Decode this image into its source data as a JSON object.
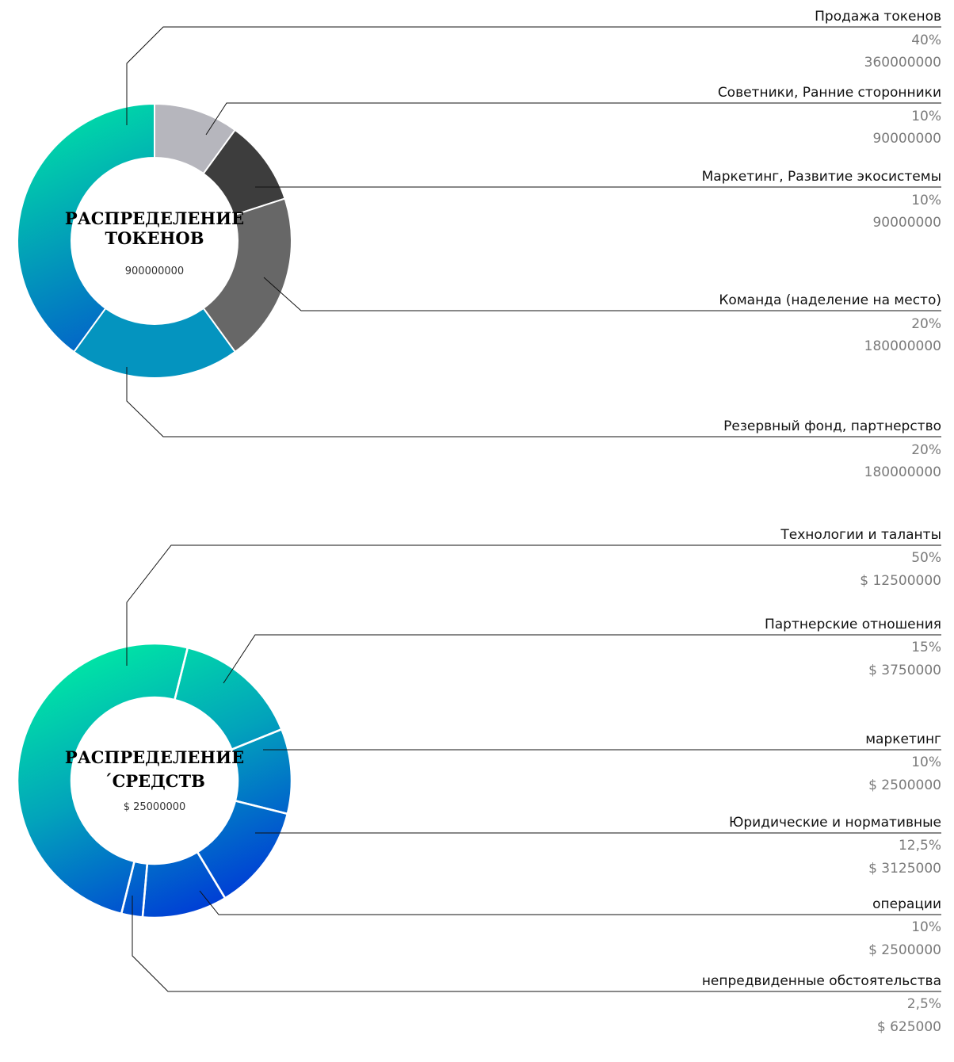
{
  "chart_data": [
    {
      "type": "pie",
      "title": "РАСПРЕДЕЛЕНИЕ ТОКЕНОВ",
      "title_lines": [
        "РАСПРЕДЕЛЕНИЕ",
        "ТОКЕНОВ"
      ],
      "total": "900000000",
      "slices": [
        {
          "name": "Продажа токенов",
          "percent_label": "40%",
          "amount": "360000000",
          "value": 40,
          "color": "gradient"
        },
        {
          "name": "Советники, Ранние сторонники",
          "percent_label": "10%",
          "amount": "90000000",
          "value": 10,
          "color": "#b6b6bd"
        },
        {
          "name": "Маркетинг, Развитие экосистемы",
          "percent_label": "10%",
          "amount": "90000000",
          "value": 10,
          "color": "#3d3d3d"
        },
        {
          "name": "Команда (наделение на место)",
          "percent_label": "20%",
          "amount": "180000000",
          "value": 20,
          "color": "#676767"
        },
        {
          "name": "Резервный фонд, партнерство",
          "percent_label": "20%",
          "amount": "180000000",
          "value": 20,
          "color": "#0494bf"
        }
      ],
      "order_from_top_clockwise": [
        1,
        2,
        3,
        4,
        0
      ]
    },
    {
      "type": "pie",
      "title": "РАСПРЕДЕЛЕНИЕ ´СРЕДСТВ",
      "title_lines": [
        "РАСПРЕДЕЛЕНИЕ",
        "´СРЕДСТВ"
      ],
      "total": "$ 25000000",
      "slices": [
        {
          "name": "Технологии и таланты",
          "percent_label": "50%",
          "amount": "$ 12500000",
          "value": 50
        },
        {
          "name": "Партнерские отношения",
          "percent_label": "15%",
          "amount": "$ 3750000",
          "value": 15
        },
        {
          "name": "маркетинг",
          "percent_label": "10%",
          "amount": "$ 2500000",
          "value": 10
        },
        {
          "name": "Юридические и нормативные",
          "percent_label": "12,5%",
          "amount": "$ 3125000",
          "value": 12.5
        },
        {
          "name": "операции",
          "percent_label": "10%",
          "amount": "$ 2500000",
          "value": 10
        },
        {
          "name": "непредвиденные обстоятельства",
          "percent_label": "2,5%",
          "amount": "$ 625000",
          "value": 2.5
        }
      ],
      "colors": {
        "gradient_from": "#00e3a5",
        "gradient_to": "#0037d6"
      }
    }
  ]
}
